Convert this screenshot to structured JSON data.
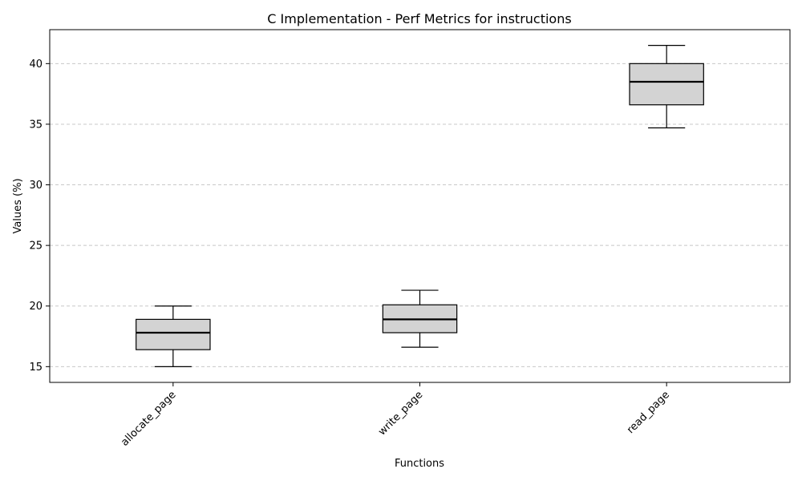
{
  "chart_data": {
    "type": "box",
    "title": "C Implementation - Perf Metrics for instructions",
    "xlabel": "Functions",
    "ylabel": "Values (%)",
    "ylim": [
      13.7,
      42.8
    ],
    "yticks": [
      15,
      20,
      25,
      30,
      35,
      40
    ],
    "grid": "y",
    "categories": [
      "allocate_page",
      "write_page",
      "read_page"
    ],
    "boxes": [
      {
        "category": "allocate_page",
        "min": 15.0,
        "q1": 16.4,
        "median": 17.8,
        "q3": 18.9,
        "max": 20.0
      },
      {
        "category": "write_page",
        "min": 16.6,
        "q1": 17.8,
        "median": 18.9,
        "q3": 20.1,
        "max": 21.3
      },
      {
        "category": "read_page",
        "min": 34.7,
        "q1": 36.6,
        "median": 38.5,
        "q3": 40.0,
        "max": 41.5
      }
    ],
    "colors": {
      "box_fill": "#d3d3d3",
      "line": "#000000",
      "grid": "#c8c8c8"
    }
  }
}
